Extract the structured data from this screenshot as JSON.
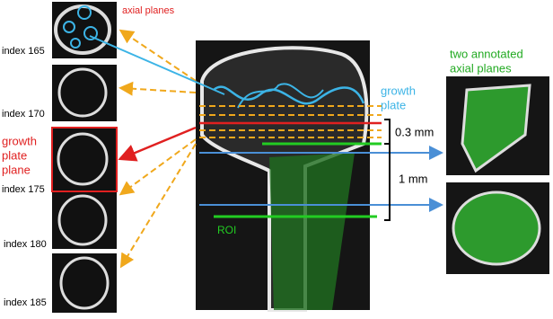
{
  "labels": {
    "axial_planes": "axial planes",
    "growth_plate_plane": [
      "growth",
      "plate",
      "plane"
    ],
    "growth_plate": [
      "growth",
      "plate"
    ],
    "distance_small": "0.3 mm",
    "distance_large": "1 mm",
    "roi": "ROI",
    "annotated": [
      "two annotated",
      "axial planes"
    ]
  },
  "slices": [
    "index 165",
    "index 170",
    "index 175",
    "index 180",
    "index 185"
  ]
}
